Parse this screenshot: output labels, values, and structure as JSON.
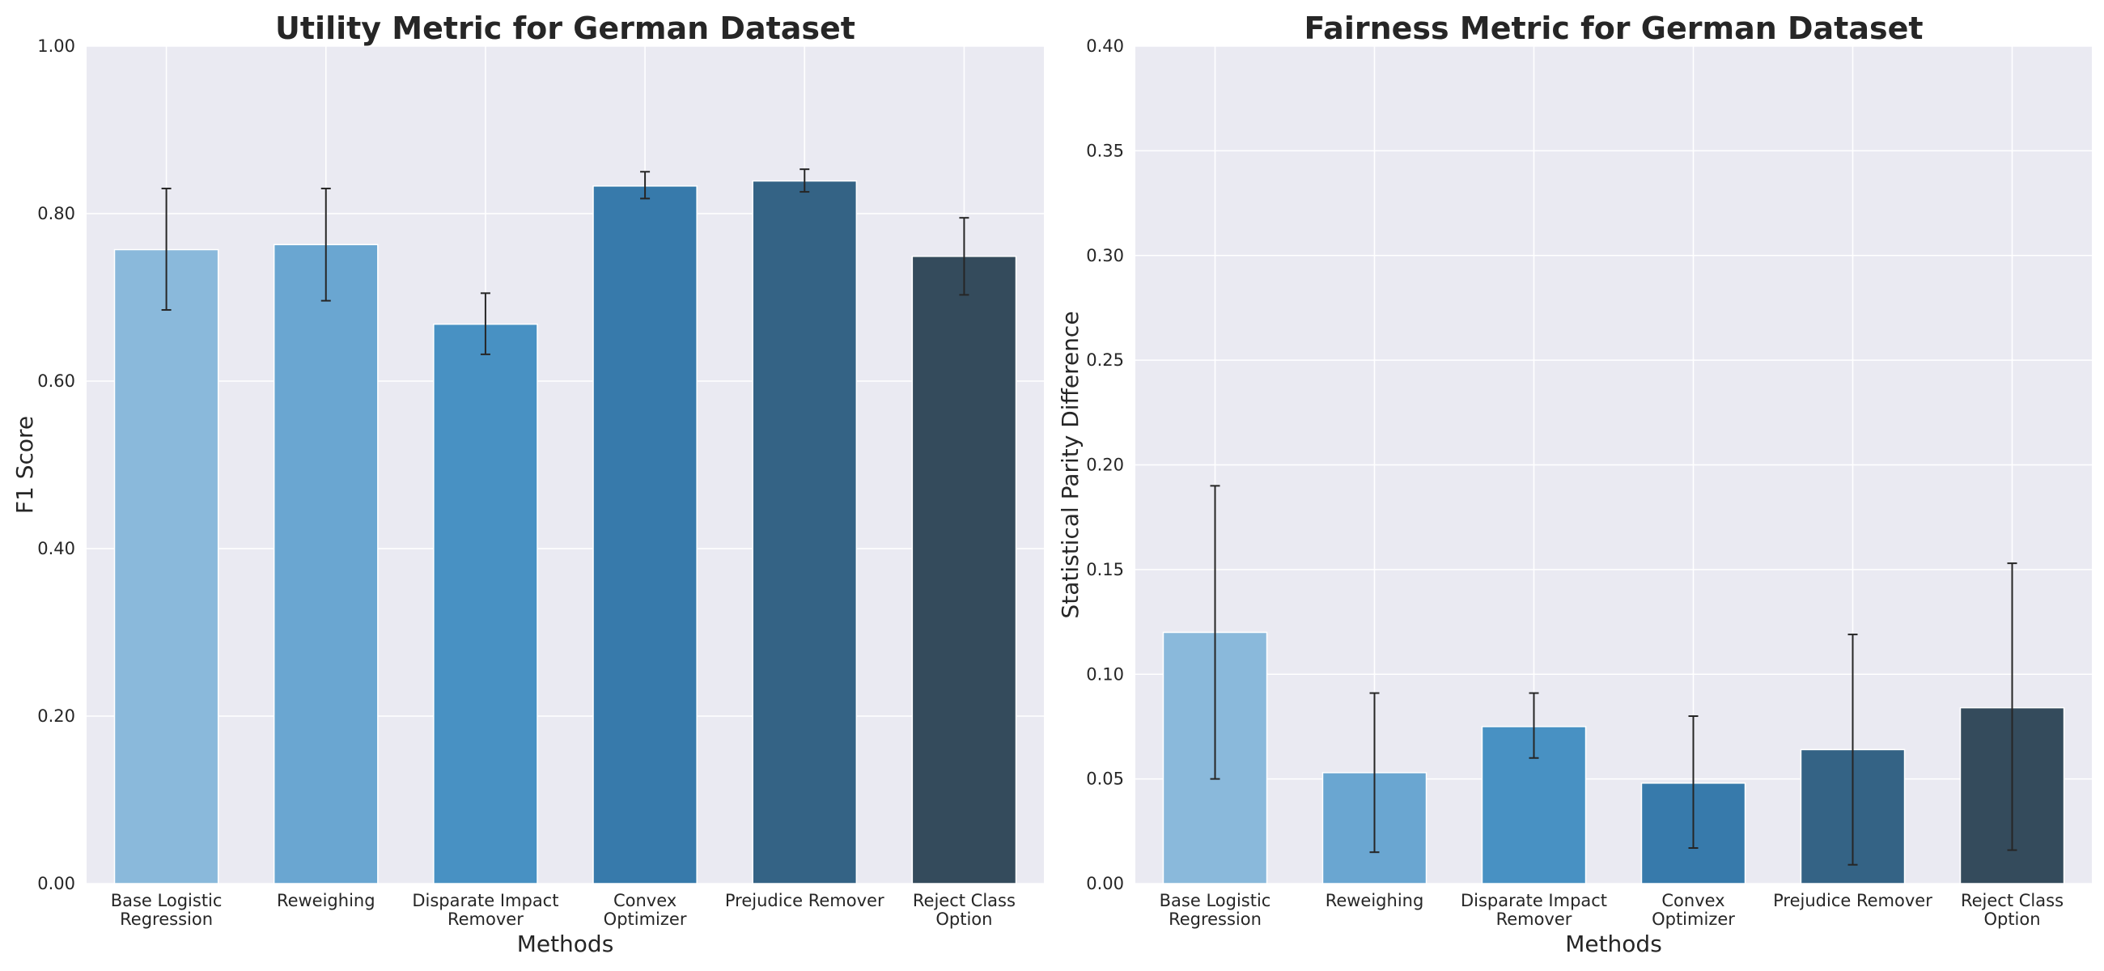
{
  "chart_data": [
    {
      "type": "bar",
      "title": "Utility Metric for German Dataset",
      "xlabel": "Methods",
      "ylabel": "F1 Score",
      "ylim": [
        0,
        1.0
      ],
      "yticks": [
        "0.00",
        "0.20",
        "0.40",
        "0.60",
        "0.80",
        "1.00"
      ],
      "ytick_values": [
        0,
        0.2,
        0.4,
        0.6,
        0.8,
        1.0
      ],
      "grid": true,
      "categories": [
        [
          "Base Logistic",
          "Regression"
        ],
        [
          "Reweighing"
        ],
        [
          "Disparate Impact",
          "Remover"
        ],
        [
          "Convex",
          "Optimizer"
        ],
        [
          "Prejudice Remover"
        ],
        [
          "Reject Class",
          "Option"
        ]
      ],
      "values": [
        0.757,
        0.763,
        0.668,
        0.833,
        0.839,
        0.749
      ],
      "error_low": [
        0.685,
        0.696,
        0.632,
        0.818,
        0.826,
        0.703
      ],
      "error_high": [
        0.83,
        0.83,
        0.705,
        0.85,
        0.853,
        0.795
      ]
    },
    {
      "type": "bar",
      "title": "Fairness Metric for German Dataset",
      "xlabel": "Methods",
      "ylabel": "Statistical Parity Difference",
      "ylim": [
        0,
        0.4
      ],
      "yticks": [
        "0.00",
        "0.05",
        "0.10",
        "0.15",
        "0.20",
        "0.25",
        "0.30",
        "0.35",
        "0.40"
      ],
      "ytick_values": [
        0,
        0.05,
        0.1,
        0.15,
        0.2,
        0.25,
        0.3,
        0.35,
        0.4
      ],
      "grid": true,
      "categories": [
        [
          "Base Logistic",
          "Regression"
        ],
        [
          "Reweighing"
        ],
        [
          "Disparate Impact",
          "Remover"
        ],
        [
          "Convex",
          "Optimizer"
        ],
        [
          "Prejudice Remover"
        ],
        [
          "Reject Class",
          "Option"
        ]
      ],
      "values": [
        0.12,
        0.053,
        0.075,
        0.048,
        0.064,
        0.084
      ],
      "error_low": [
        0.05,
        0.015,
        0.06,
        0.017,
        0.009,
        0.016
      ],
      "error_high": [
        0.19,
        0.091,
        0.091,
        0.08,
        0.119,
        0.153
      ]
    }
  ],
  "colors": {
    "bars": [
      "#8ab9db",
      "#6aa6d1",
      "#4891c3",
      "#377aab",
      "#346385",
      "#344b5c"
    ],
    "plot_bg": "#eaeaf2",
    "grid": "#ffffff",
    "error": "#262626"
  }
}
